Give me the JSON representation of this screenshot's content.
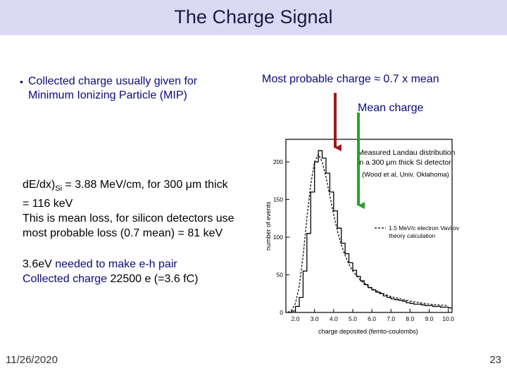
{
  "title": "The Charge Signal",
  "bullet": {
    "symbol": "•",
    "line1": "Collected charge usually given for",
    "line2": "Minimum Ionizing Particle (MIP)"
  },
  "annotations": {
    "most_probable": "Most probable charge ≈ 0.7 x mean",
    "mean": "Mean charge",
    "arrow_colors": {
      "most_probable": "#a01818",
      "mean": "#2aa02a"
    }
  },
  "dedx": {
    "prefix": "d",
    "E": "E/dx)",
    "sub": "Si",
    "rest1": " = 3.88 MeV/cm, for 300 ",
    "mu": "μ",
    "rest2": "m thick",
    "line2": "= 116 keV",
    "line3": "This is mean loss, for silicon detectors use",
    "line4": "most probable loss (0.7 mean) = 81 keV"
  },
  "pair": {
    "line1a": "3.6eV",
    "line1b": " needed to make e-h pair",
    "line2a": "Collected charge ",
    "line2b": " 22500 e (=3.6 fC)"
  },
  "chart_data": {
    "type": "line",
    "legend_text": [
      "Measured Landau distribution",
      "in a 300 μm thick Si detector",
      "(Wood et al, Univ. Oklahoma)"
    ],
    "theory_legend": [
      "1.5 MeV/c electron Vavilov",
      "theory calculation"
    ],
    "xlabel": "charge deposited (femto-coulombs)",
    "ylabel": "number of events",
    "x_ticks": [
      "2.0",
      "3.0",
      "4.0",
      "5.0",
      "6.0",
      "7.0",
      "8.0",
      "9.0",
      "10.0"
    ],
    "y_ticks": [
      "0",
      "50",
      "100",
      "150",
      "200"
    ],
    "xlim": [
      1.5,
      10.2
    ],
    "ylim": [
      0,
      230
    ],
    "measured_x": [
      1.6,
      1.8,
      2.0,
      2.2,
      2.4,
      2.6,
      2.8,
      3.0,
      3.2,
      3.4,
      3.6,
      3.8,
      4.0,
      4.2,
      4.4,
      4.6,
      4.8,
      5.0,
      5.2,
      5.4,
      5.6,
      5.8,
      6.0,
      6.2,
      6.4,
      6.6,
      6.8,
      7.0,
      7.2,
      7.4,
      7.6,
      7.8,
      8.0,
      8.2,
      8.4,
      8.6,
      8.8,
      9.0,
      9.2,
      9.4,
      9.6,
      9.8,
      10.0
    ],
    "measured_y": [
      0,
      2,
      8,
      20,
      55,
      105,
      160,
      200,
      215,
      205,
      185,
      160,
      135,
      112,
      92,
      78,
      66,
      56,
      48,
      42,
      37,
      33,
      30,
      27,
      25,
      22,
      20,
      18,
      17,
      16,
      15,
      13,
      12,
      11,
      11,
      10,
      9,
      9,
      8,
      8,
      7,
      7,
      6
    ],
    "theory_x": [
      1.6,
      1.8,
      2.0,
      2.2,
      2.4,
      2.6,
      2.8,
      3.0,
      3.2,
      3.4,
      3.6,
      3.8,
      4.0,
      4.2,
      4.4,
      4.6,
      4.8,
      5.0,
      5.4,
      5.8,
      6.2,
      6.6,
      7.0,
      7.5,
      8.0,
      8.5,
      9.0,
      9.5,
      10.0
    ],
    "theory_y": [
      0,
      3,
      12,
      35,
      75,
      125,
      170,
      200,
      210,
      200,
      180,
      155,
      130,
      108,
      90,
      76,
      64,
      55,
      43,
      35,
      29,
      25,
      21,
      18,
      15,
      13,
      11,
      10,
      9
    ]
  },
  "footer": {
    "date": "11/26/2020",
    "page": "23"
  }
}
